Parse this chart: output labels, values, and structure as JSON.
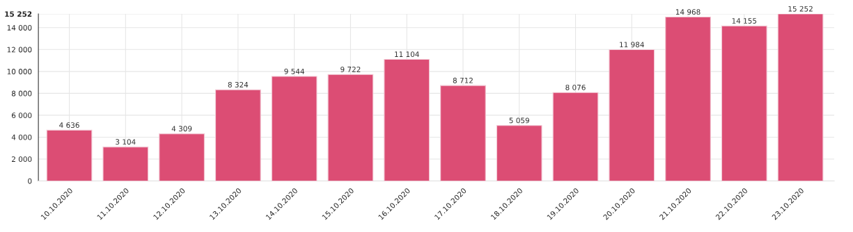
{
  "chart_data": {
    "type": "bar",
    "categories": [
      "10.10.2020",
      "11.10.2020",
      "12.10.2020",
      "13.10.2020",
      "14.10.2020",
      "15.10.2020",
      "16.10.2020",
      "17.10.2020",
      "18.10.2020",
      "19.10.2020",
      "20.10.2020",
      "21.10.2020",
      "22.10.2020",
      "23.10.2020"
    ],
    "values": [
      4636,
      3104,
      4309,
      8324,
      9544,
      9722,
      11104,
      8712,
      5059,
      8076,
      11984,
      14968,
      14155,
      15252
    ],
    "value_labels": [
      "4 636",
      "3 104",
      "4 309",
      "8 324",
      "9 544",
      "9 722",
      "11 104",
      "8 712",
      "5 059",
      "8 076",
      "11 984",
      "14 968",
      "14 155",
      "15 252"
    ],
    "color": "#dc4d74",
    "ylim": [
      0,
      15252
    ],
    "yticks": [
      {
        "value": 0,
        "label": "0"
      },
      {
        "value": 2000,
        "label": "2 000"
      },
      {
        "value": 4000,
        "label": "4 000"
      },
      {
        "value": 6000,
        "label": "6 000"
      },
      {
        "value": 8000,
        "label": "8 000"
      },
      {
        "value": 10000,
        "label": "10 000"
      },
      {
        "value": 12000,
        "label": "12 000"
      },
      {
        "value": 14000,
        "label": "14 000"
      },
      {
        "value": 15252,
        "label": "15 252"
      }
    ],
    "grid": true
  }
}
